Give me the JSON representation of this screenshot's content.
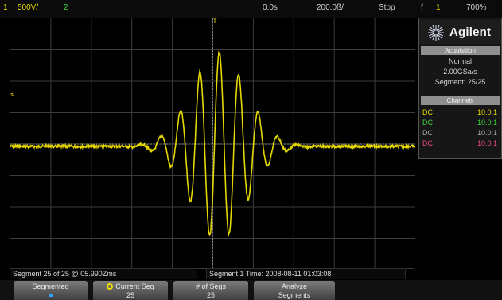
{
  "status": {
    "ch1_num": "1",
    "ch1_scale": "500V/",
    "ch2_num": "2",
    "time_delay": "0.0s",
    "time_scale": "200.0ß/",
    "run_state": "Stop",
    "trig_symbol": "f",
    "trig_source": "1",
    "trig_level": "700%"
  },
  "brand": "Agilent",
  "acquisition": {
    "header": "Acquisition",
    "mode": "Normal",
    "rate": "2.00GSa/s",
    "segment": "Segment: 25/25"
  },
  "channels": {
    "header": "Channels",
    "rows": [
      {
        "coupling": "DC",
        "ratio": "10.0:1",
        "color": "#e5d700"
      },
      {
        "coupling": "DC",
        "ratio": "10.0:1",
        "color": "#3bd13b"
      },
      {
        "coupling": "DC",
        "ratio": "10.0:1",
        "color": "#a8a8a8"
      },
      {
        "coupling": "DC",
        "ratio": "10.0:1",
        "color": "#e8487a"
      }
    ]
  },
  "markers": {
    "trigger_pos": "T",
    "ch1_level": "1",
    "ch1_scale_marker": "e"
  },
  "info_bar": {
    "segment_text": "Segment 25 of 25 @ 05.990Zms",
    "segment_time": "Segment 1 Time: 2008-08-11 01:03:08"
  },
  "softkeys": {
    "segmented": "Segmented",
    "current_seg": "Current Seg",
    "current_seg_value": "25",
    "num_segs": "# of Segs",
    "num_segs_value": "25",
    "analyze": "Analyze",
    "analyze_2": "Segments"
  },
  "colors": {
    "ch1": "#e5d700",
    "grid": "#3c3c3c",
    "background": "#000000"
  }
}
